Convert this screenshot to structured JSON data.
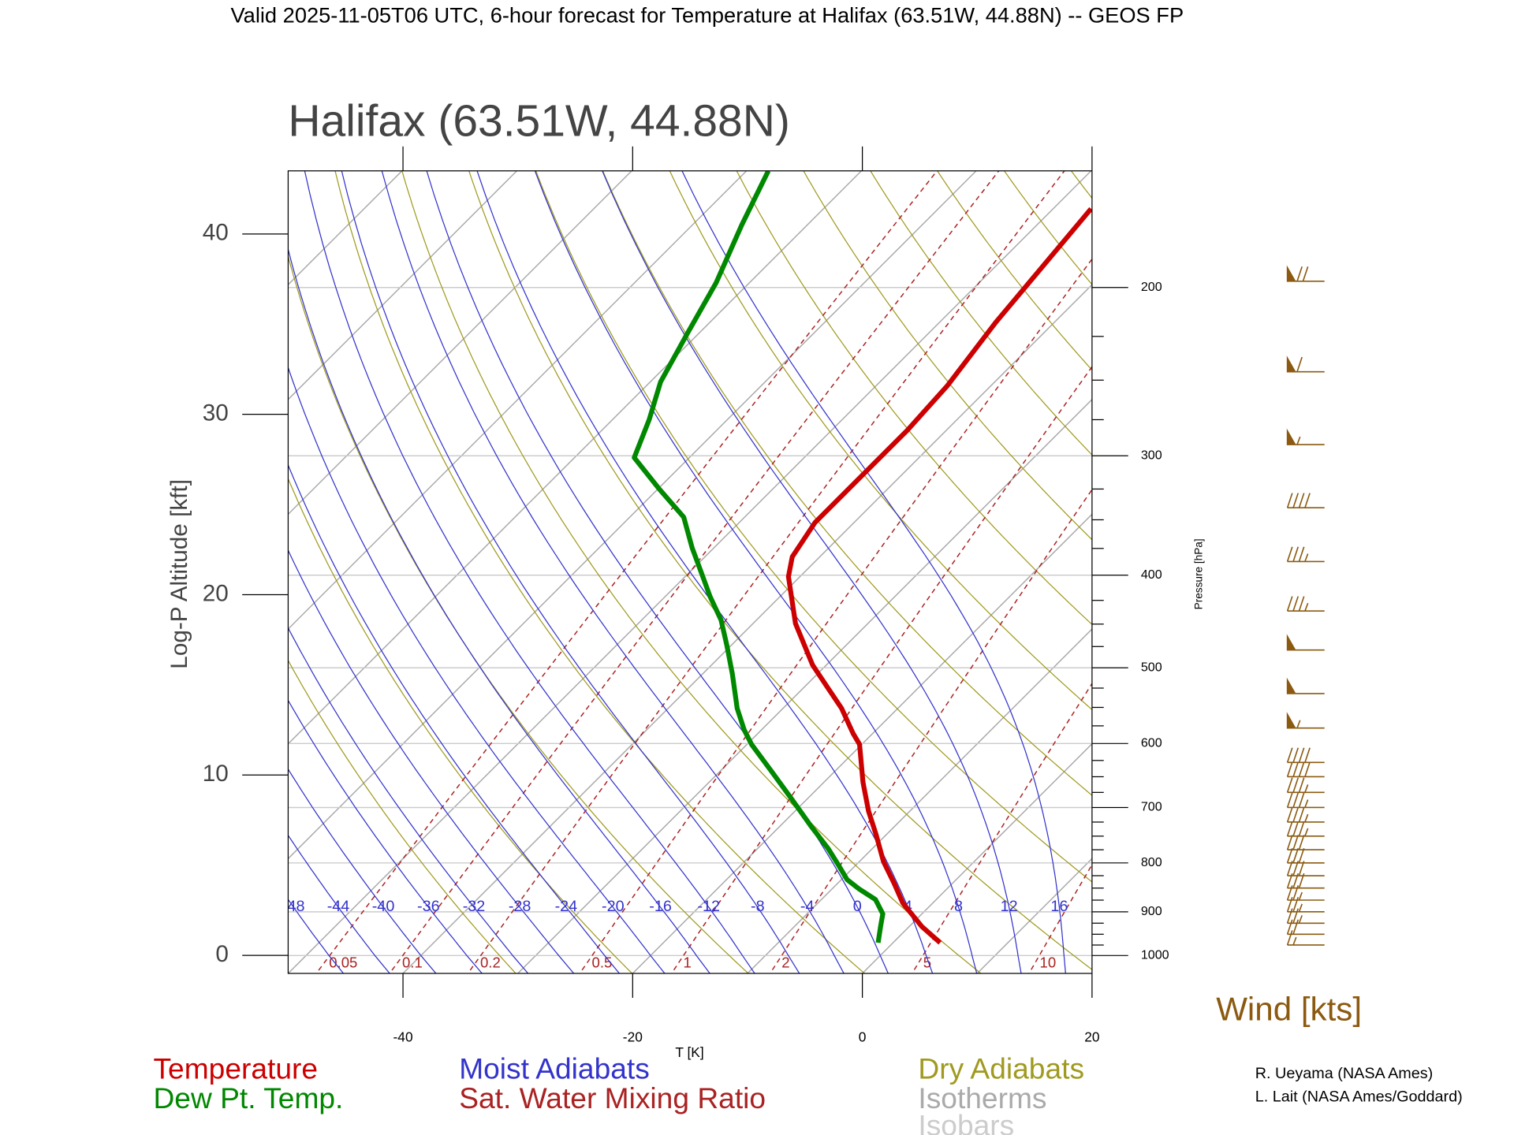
{
  "chart_data": {
    "type": "skewt",
    "title": "Valid 2025-11-05T06 UTC, 6-hour forecast for Temperature at Halifax (63.51W, 44.88N) -- GEOS FP",
    "subtitle": "Halifax (63.51W, 44.88N)",
    "xlabel": "T [K]",
    "ylabel": "Log-P Altitude [kft]",
    "y2label": "Pressure [hPa]",
    "xlim": [
      -50,
      20
    ],
    "xticks": [
      -40,
      -20,
      0,
      20
    ],
    "ylim": [
      -1,
      43.5
    ],
    "yticks": [
      0,
      10,
      20,
      30,
      40
    ],
    "y2lim": [
      1044,
      151
    ],
    "y2scale": "log",
    "y2ticks": [
      1000,
      900,
      800,
      700,
      600,
      500,
      400,
      300,
      200
    ],
    "series": [
      {
        "name": "Temperature",
        "color": "#cc0000",
        "x": [
          4.1,
          1.1,
          -2.6,
          -5.1,
          -7.9,
          -10.9,
          -13.6,
          -16.6,
          -20.2,
          -21.7,
          -24.9,
          -27.8,
          -31.2,
          -36.3,
          -41.0,
          -42.4,
          -43.4,
          -43.4,
          -43.4,
          -43.8,
          -45.1,
          -46.7
        ],
        "values": [
          0.7,
          1.6,
          2.9,
          4.0,
          5.2,
          6.7,
          8.0,
          9.6,
          11.7,
          12.3,
          13.7,
          14.8,
          16.1,
          18.4,
          21.0,
          22.1,
          24.0,
          26.4,
          29.1,
          31.6,
          35.1,
          41.4
        ]
      },
      {
        "name": "Dew Pt. Temp.",
        "color": "#008800",
        "x": [
          -1.3,
          -2.5,
          -3.4,
          -5.3,
          -7.7,
          -9.5,
          -11.5,
          -13.8,
          -17.4,
          -21.7,
          -25.5,
          -29.6,
          -31.5,
          -34.0,
          -37.4,
          -40.4,
          -43.1,
          -46.1,
          -49.1,
          -51.9,
          -55.3,
          -60.0,
          -64.8,
          -66.8,
          -69.1,
          -71.0,
          -72.9,
          -75.7,
          -78.1
        ],
        "values": [
          0.7,
          1.6,
          2.3,
          3.1,
          3.7,
          4.2,
          5.0,
          5.9,
          7.2,
          8.8,
          10.2,
          11.7,
          12.5,
          13.7,
          15.6,
          17.2,
          18.6,
          19.9,
          21.3,
          22.6,
          24.3,
          25.9,
          27.6,
          29.7,
          31.8,
          34.5,
          37.3,
          40.5,
          43.5
        ]
      }
    ],
    "lines": {
      "moist_adiabats": {
        "name": "Moist Adiabats",
        "color": "#3333cc",
        "labels": [
          -48,
          -44,
          -40,
          -36,
          -32,
          -28,
          -24,
          -20,
          -16,
          -12,
          -8,
          -4,
          0,
          4,
          8,
          12,
          16
        ]
      },
      "mixing_ratio": {
        "name": "Sat. Water Mixing Ratio",
        "color": "#aa2222",
        "labels": [
          0.05,
          0.1,
          0.2,
          0.5,
          1,
          2,
          5,
          10
        ]
      },
      "dry_adiabats": {
        "name": "Dry Adiabats",
        "color": "#a09a20"
      },
      "isotherms": {
        "name": "Isotherms",
        "color": "#aaaaaa"
      },
      "isobars": {
        "name": "Isobars",
        "color": "#cccccc"
      }
    },
    "wind": {
      "label": "Wind [kts]",
      "color": "#8b5a10",
      "pressure": [
        197,
        245,
        292,
        340,
        387,
        436,
        479,
        532,
        578,
        628,
        650,
        675,
        700,
        725,
        750,
        775,
        800,
        825,
        850,
        875,
        900,
        925,
        950,
        975
      ],
      "speed": [
        70,
        60,
        55,
        40,
        35,
        35,
        50,
        50,
        55,
        40,
        40,
        35,
        35,
        35,
        35,
        30,
        30,
        30,
        30,
        25,
        25,
        25,
        20,
        15
      ]
    },
    "credits": [
      "R. Ueyama (NASA Ames)",
      "L. Lait (NASA Ames/Goddard)"
    ]
  }
}
